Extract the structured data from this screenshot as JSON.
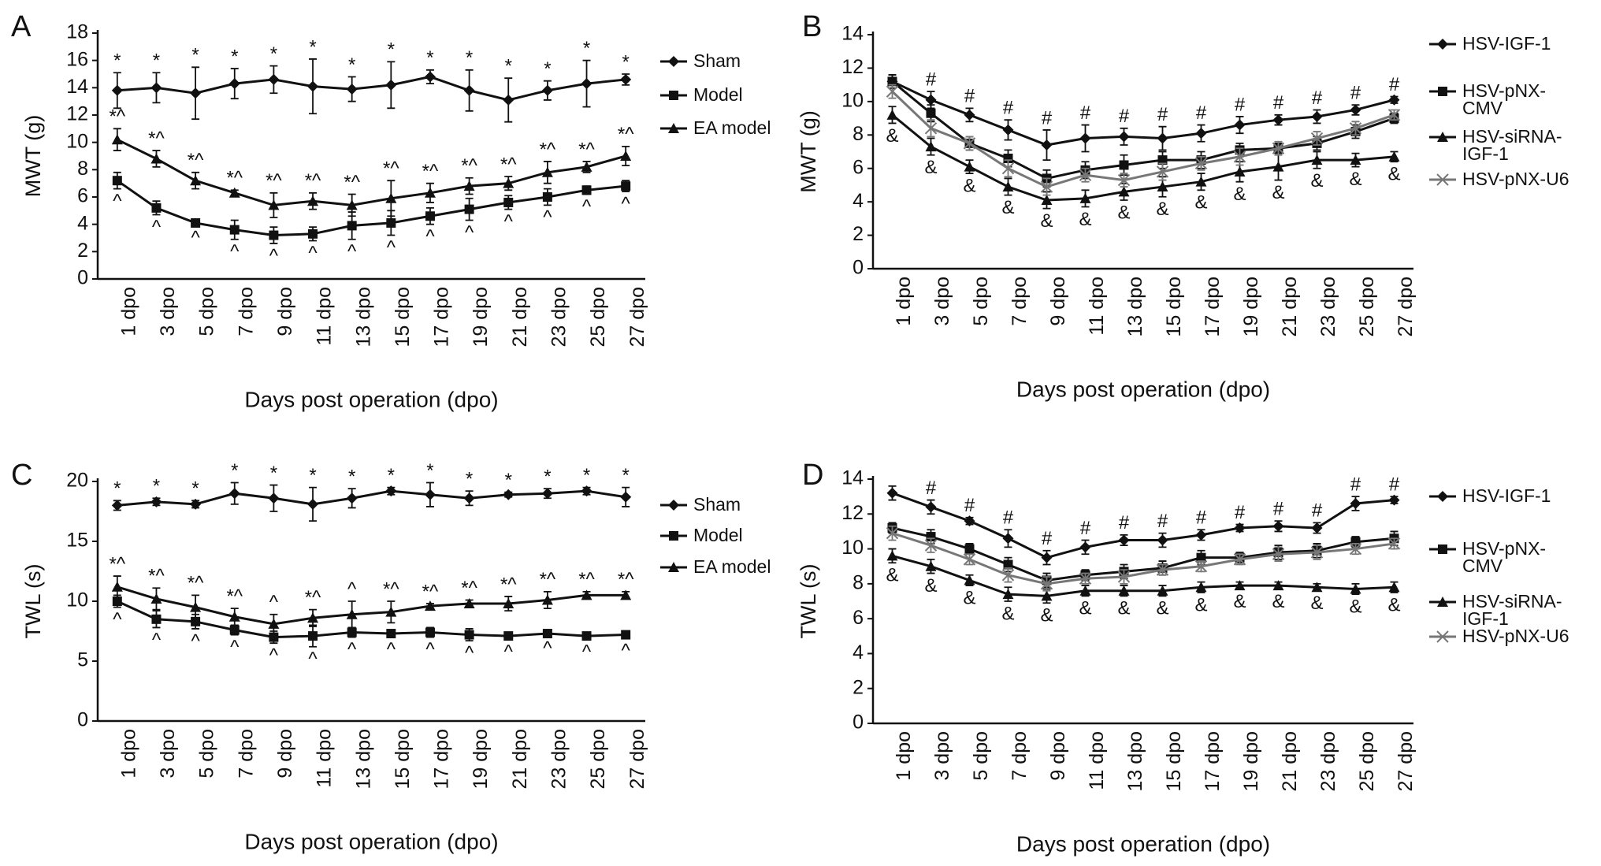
{
  "chart_data": [
    {
      "type": "line",
      "panel": "A",
      "y_label": "MWT (g)",
      "x_label": "Days post operation (dpo)",
      "categories": [
        "1 dpo",
        "3 dpo",
        "5 dpo",
        "7 dpo",
        "9 dpo",
        "11 dpo",
        "13 dpo",
        "15 dpo",
        "17 dpo",
        "19 dpo",
        "21 dpo",
        "23 dpo",
        "25 dpo",
        "27 dpo"
      ],
      "ylim": [
        0,
        18
      ],
      "yticks": [
        0,
        2,
        4,
        6,
        8,
        10,
        12,
        14,
        16,
        18
      ],
      "series": [
        {
          "name": "Sham",
          "color": "#111111",
          "marker": "diamond",
          "values": [
            13.8,
            14.0,
            13.6,
            14.3,
            14.6,
            14.1,
            13.9,
            14.2,
            14.8,
            13.8,
            13.1,
            13.8,
            14.3,
            14.6
          ],
          "errors": [
            1.3,
            1.1,
            1.9,
            1.1,
            1.0,
            2.0,
            0.9,
            1.7,
            0.5,
            1.5,
            1.6,
            0.7,
            1.7,
            0.4
          ],
          "point_labels": [
            "*",
            "*",
            "*",
            "*",
            "*",
            "*",
            "*",
            "*",
            "*",
            "*",
            "*",
            "*",
            "*",
            "*"
          ],
          "point_label_position": "above"
        },
        {
          "name": "Model",
          "color": "#111111",
          "marker": "square",
          "values": [
            7.2,
            5.2,
            4.1,
            3.6,
            3.2,
            3.3,
            3.9,
            4.1,
            4.6,
            5.1,
            5.6,
            6.0,
            6.5,
            6.8
          ],
          "errors": [
            0.6,
            0.5,
            0.2,
            0.7,
            0.6,
            0.5,
            1.0,
            0.9,
            0.6,
            0.8,
            0.5,
            0.6,
            0.3,
            0.4
          ],
          "point_labels": [
            "^",
            "^",
            "^",
            "^",
            "^",
            "^",
            "^",
            "^",
            "^",
            "^",
            "^",
            "^",
            "^",
            "^"
          ],
          "point_label_position": "below"
        },
        {
          "name": "EA model",
          "color": "#111111",
          "marker": "triangle",
          "values": [
            10.2,
            8.8,
            7.2,
            6.3,
            5.4,
            5.7,
            5.4,
            5.9,
            6.3,
            6.8,
            7.0,
            7.8,
            8.2,
            9.0
          ],
          "errors": [
            0.8,
            0.6,
            0.6,
            0.2,
            0.9,
            0.6,
            0.8,
            1.3,
            0.7,
            0.6,
            0.5,
            0.8,
            0.4,
            0.7
          ],
          "point_labels": [
            "*^",
            "*^",
            "*^",
            "*^",
            "*^",
            "*^",
            "*^",
            "*^",
            "*^",
            "*^",
            "*^",
            "*^",
            "*^",
            "*^"
          ],
          "point_label_position": "above"
        }
      ]
    },
    {
      "type": "line",
      "panel": "B",
      "y_label": "MWT (g)",
      "x_label": "Days post operation (dpo)",
      "categories": [
        "1 dpo",
        "3 dpo",
        "5 dpo",
        "7 dpo",
        "9 dpo",
        "11 dpo",
        "13 dpo",
        "15 dpo",
        "17 dpo",
        "19 dpo",
        "21 dpo",
        "23 dpo",
        "25 dpo",
        "27 dpo"
      ],
      "ylim": [
        0,
        14
      ],
      "yticks": [
        0,
        2,
        4,
        6,
        8,
        10,
        12,
        14
      ],
      "series": [
        {
          "name": "HSV-IGF-1",
          "color": "#111111",
          "marker": "diamond",
          "values": [
            11.2,
            10.1,
            9.2,
            8.3,
            7.4,
            7.8,
            7.9,
            7.8,
            8.1,
            8.6,
            8.9,
            9.1,
            9.5,
            10.1
          ],
          "errors": [
            0.4,
            0.5,
            0.4,
            0.6,
            0.9,
            0.8,
            0.5,
            0.7,
            0.5,
            0.5,
            0.3,
            0.4,
            0.3,
            0.2
          ],
          "point_labels": [
            null,
            "#",
            "#",
            "#",
            "#",
            "#",
            "#",
            "#",
            "#",
            "#",
            "#",
            "#",
            "#",
            "#"
          ],
          "point_label_position": "above"
        },
        {
          "name": "HSV-pNX-CMV",
          "color": "#111111",
          "marker": "square",
          "values": [
            11.2,
            9.3,
            7.5,
            6.6,
            5.4,
            5.9,
            6.2,
            6.5,
            6.5,
            7.1,
            7.2,
            7.5,
            8.2,
            9.0
          ],
          "errors": [
            0.4,
            0.5,
            0.4,
            0.5,
            0.5,
            0.5,
            0.6,
            0.5,
            0.5,
            0.4,
            0.3,
            0.4,
            0.4,
            0.3
          ]
        },
        {
          "name": "HSV-siRNA-IGF-1",
          "color": "#111111",
          "marker": "triangle",
          "values": [
            9.2,
            7.3,
            6.1,
            4.9,
            4.1,
            4.2,
            4.6,
            4.9,
            5.2,
            5.8,
            6.1,
            6.5,
            6.5,
            6.7
          ],
          "errors": [
            0.5,
            0.5,
            0.4,
            0.5,
            0.5,
            0.5,
            0.5,
            0.6,
            0.5,
            0.6,
            0.8,
            0.5,
            0.4,
            0.3
          ],
          "point_labels": [
            "&",
            "&",
            "&",
            "&",
            "&",
            "&",
            "&",
            "&",
            "&",
            "&",
            "&",
            "&",
            "&",
            "&"
          ],
          "point_label_position": "below"
        },
        {
          "name": "HSV-pNX-U6",
          "color": "#777777",
          "marker": "cross",
          "values": [
            10.6,
            8.4,
            7.5,
            6.0,
            4.9,
            5.6,
            5.3,
            5.8,
            6.3,
            6.7,
            7.2,
            7.8,
            8.4,
            9.2
          ],
          "errors": [
            0.4,
            0.5,
            0.4,
            0.5,
            0.5,
            0.4,
            0.4,
            0.5,
            0.4,
            0.5,
            0.4,
            0.4,
            0.4,
            0.3
          ]
        }
      ]
    },
    {
      "type": "line",
      "panel": "C",
      "y_label": "TWL (s)",
      "x_label": "Days post operation (dpo)",
      "categories": [
        "1 dpo",
        "3 dpo",
        "5 dpo",
        "7 dpo",
        "9 dpo",
        "11 dpo",
        "13 dpo",
        "15 dpo",
        "17 dpo",
        "19 dpo",
        "21 dpo",
        "23 dpo",
        "25 dpo",
        "27 dpo"
      ],
      "ylim": [
        0,
        20
      ],
      "yticks": [
        0,
        5,
        10,
        15,
        20
      ],
      "series": [
        {
          "name": "Sham",
          "color": "#111111",
          "marker": "diamond",
          "values": [
            18.0,
            18.3,
            18.1,
            19.0,
            18.6,
            18.1,
            18.6,
            19.2,
            18.9,
            18.6,
            18.9,
            19.0,
            19.2,
            18.7
          ],
          "errors": [
            0.4,
            0.3,
            0.3,
            0.9,
            1.1,
            1.4,
            0.8,
            0.3,
            1.0,
            0.6,
            0.2,
            0.4,
            0.3,
            0.8
          ],
          "point_labels": [
            "*",
            "*",
            "*",
            "*",
            "*",
            "*",
            "*",
            "*",
            "*",
            "*",
            "*",
            "*",
            "*",
            "*"
          ],
          "point_label_position": "above"
        },
        {
          "name": "Model",
          "color": "#111111",
          "marker": "square",
          "values": [
            10.0,
            8.5,
            8.3,
            7.6,
            7.0,
            7.1,
            7.4,
            7.3,
            7.4,
            7.2,
            7.1,
            7.3,
            7.1,
            7.2
          ],
          "errors": [
            0.5,
            0.7,
            0.6,
            0.4,
            0.5,
            0.9,
            0.4,
            0.3,
            0.4,
            0.5,
            0.3,
            0.2,
            0.3,
            0.3
          ],
          "point_labels": [
            "^",
            "^",
            "^",
            "^",
            "^",
            "^",
            "^",
            "^",
            "^",
            "^",
            "^",
            "^",
            "^",
            "^"
          ],
          "point_label_position": "below"
        },
        {
          "name": "EA model",
          "color": "#111111",
          "marker": "triangle",
          "values": [
            11.2,
            10.2,
            9.5,
            8.7,
            8.1,
            8.6,
            8.9,
            9.1,
            9.6,
            9.8,
            9.8,
            10.1,
            10.5,
            10.5
          ],
          "errors": [
            0.9,
            0.9,
            1.0,
            0.7,
            0.8,
            0.7,
            1.1,
            0.9,
            0.2,
            0.3,
            0.6,
            0.7,
            0.3,
            0.3
          ],
          "point_labels": [
            "*^",
            "*^",
            "*^",
            "*^",
            "^",
            "*^",
            "^",
            "*^",
            "*^",
            "*^",
            "*^",
            "*^",
            "*^",
            "*^"
          ],
          "point_label_position": "above"
        }
      ]
    },
    {
      "type": "line",
      "panel": "D",
      "y_label": "TWL (s)",
      "x_label": "Days post operation (dpo)",
      "categories": [
        "1 dpo",
        "3 dpo",
        "5 dpo",
        "7 dpo",
        "9 dpo",
        "11 dpo",
        "13 dpo",
        "15 dpo",
        "17 dpo",
        "19 dpo",
        "21 dpo",
        "23 dpo",
        "25 dpo",
        "27 dpo"
      ],
      "ylim": [
        0,
        14
      ],
      "yticks": [
        0,
        2,
        4,
        6,
        8,
        10,
        12,
        14
      ],
      "series": [
        {
          "name": "HSV-IGF-1",
          "color": "#111111",
          "marker": "diamond",
          "values": [
            13.2,
            12.4,
            11.6,
            10.6,
            9.5,
            10.1,
            10.5,
            10.5,
            10.8,
            11.2,
            11.3,
            11.2,
            12.6,
            12.8
          ],
          "errors": [
            0.4,
            0.4,
            0.2,
            0.5,
            0.4,
            0.4,
            0.3,
            0.4,
            0.3,
            0.2,
            0.3,
            0.3,
            0.4,
            0.2
          ],
          "point_labels": [
            null,
            "#",
            "#",
            "#",
            "#",
            "#",
            "#",
            "#",
            "#",
            "#",
            "#",
            "#",
            "#",
            "#"
          ],
          "point_label_position": "above"
        },
        {
          "name": "HSV-pNX-CMV",
          "color": "#111111",
          "marker": "square",
          "values": [
            11.2,
            10.7,
            10.0,
            9.1,
            8.2,
            8.5,
            8.7,
            8.9,
            9.5,
            9.5,
            9.8,
            9.9,
            10.4,
            10.6
          ],
          "errors": [
            0.3,
            0.4,
            0.3,
            0.4,
            0.4,
            0.3,
            0.4,
            0.4,
            0.4,
            0.3,
            0.4,
            0.4,
            0.3,
            0.4
          ]
        },
        {
          "name": "HSV-siRNA-IGF-1",
          "color": "#111111",
          "marker": "triangle",
          "values": [
            9.6,
            9.0,
            8.2,
            7.4,
            7.3,
            7.6,
            7.6,
            7.6,
            7.8,
            7.9,
            7.9,
            7.8,
            7.7,
            7.8
          ],
          "errors": [
            0.4,
            0.4,
            0.3,
            0.4,
            0.4,
            0.3,
            0.3,
            0.3,
            0.3,
            0.2,
            0.2,
            0.2,
            0.3,
            0.3
          ],
          "point_labels": [
            "&",
            "&",
            "&",
            "&",
            "&",
            "&",
            "&",
            "&",
            "&",
            "&",
            "&",
            "&",
            "&",
            "&"
          ],
          "point_label_position": "below"
        },
        {
          "name": "HSV-pNX-U6",
          "color": "#777777",
          "marker": "cross",
          "values": [
            10.9,
            10.2,
            9.4,
            8.5,
            8.0,
            8.3,
            8.4,
            8.8,
            9.0,
            9.4,
            9.7,
            9.8,
            10.0,
            10.3
          ],
          "errors": [
            0.4,
            0.4,
            0.3,
            0.4,
            0.4,
            0.3,
            0.4,
            0.3,
            0.3,
            0.3,
            0.4,
            0.4,
            0.3,
            0.3
          ]
        }
      ]
    }
  ]
}
